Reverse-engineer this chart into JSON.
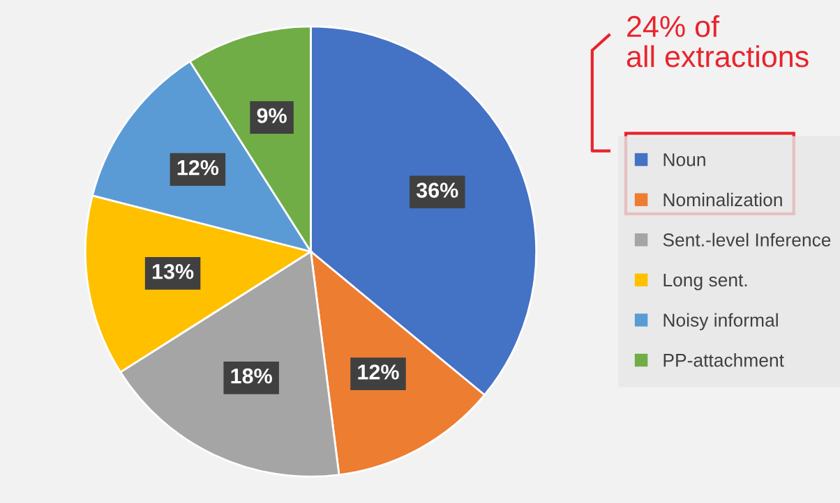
{
  "chart_data": {
    "type": "pie",
    "categories": [
      "Noun",
      "Nominalization",
      "Sent.-level Inference",
      "Long sent.",
      "Noisy informal",
      "PP-attachment"
    ],
    "values": [
      36,
      12,
      18,
      13,
      12,
      9
    ],
    "value_labels": [
      "36%",
      "12%",
      "18%",
      "13%",
      "12%",
      "9%"
    ],
    "colors": [
      "#4472c4",
      "#ed7d31",
      "#a5a5a5",
      "#ffc000",
      "#5b9bd5",
      "#70ad47"
    ],
    "legend": "right",
    "annotations": [
      "24% of\nall extractions"
    ]
  }
}
